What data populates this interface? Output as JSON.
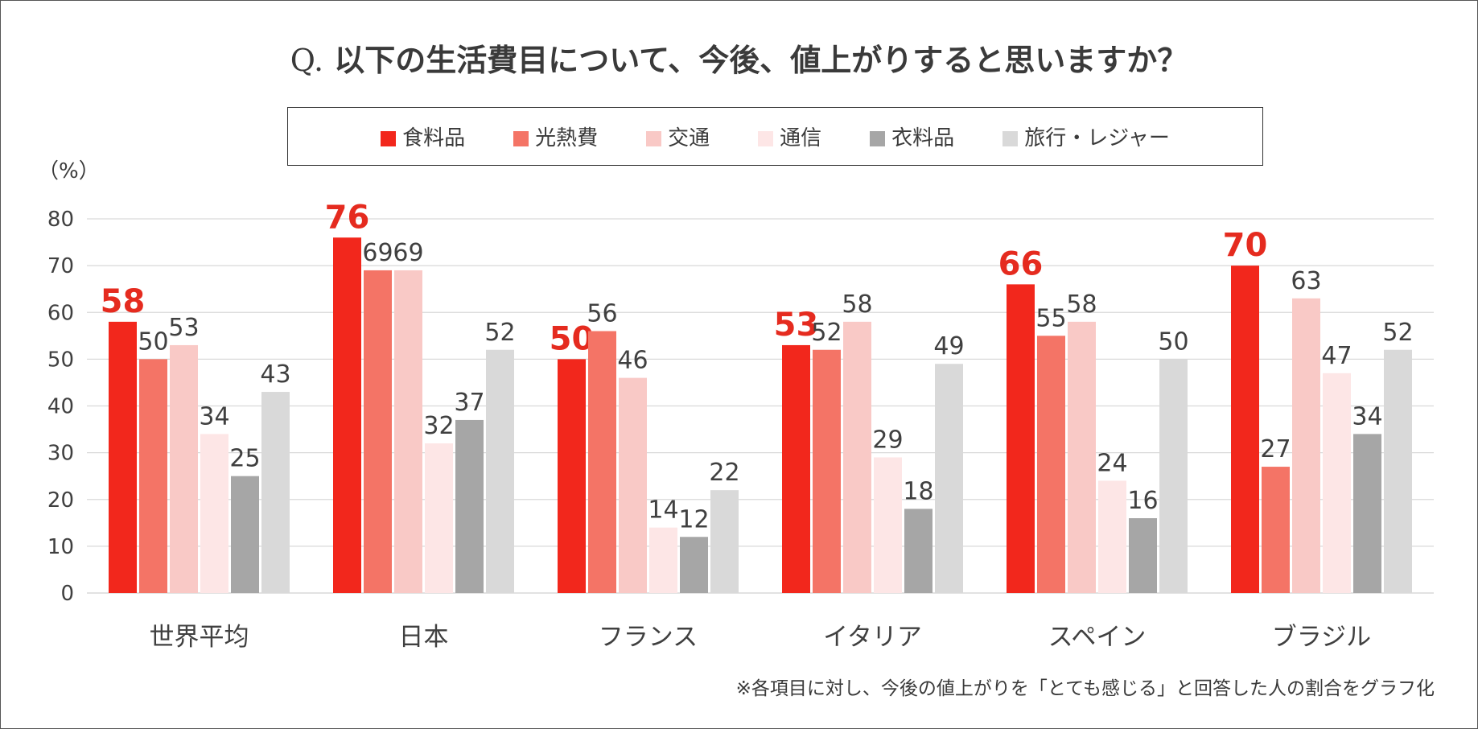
{
  "title": {
    "prefix": "Q.",
    "text": "以下の生活費目について、今後、値上がりすると思いますか？"
  },
  "unit_label": "（%）",
  "footnote": "※各項目に対し、今後の値上がりを「とても感じる」と回答した人の割合をグラフ化",
  "colors": {
    "food": "#f2271c",
    "utilities": "#f47466",
    "transport": "#f9c9c6",
    "telecom": "#fde6e6",
    "clothing": "#a6a6a6",
    "travel": "#d9d9d9",
    "highlight_label": "#e52b1f",
    "label": "#404040",
    "grid": "#d9d9d9"
  },
  "chart_data": {
    "type": "bar",
    "title": "Q. 以下の生活費目について、今後、値上がりすると思いますか？",
    "ylabel": "（%）",
    "xlabel": "",
    "ylim": [
      0,
      80
    ],
    "yticks": [
      0,
      10,
      20,
      30,
      40,
      50,
      60,
      70,
      80
    ],
    "grid": true,
    "legend_position": "top",
    "categories": [
      "世界平均",
      "日本",
      "フランス",
      "イタリア",
      "スペイン",
      "ブラジル"
    ],
    "series": [
      {
        "name": "食料品",
        "values": [
          58,
          76,
          50,
          53,
          66,
          70
        ],
        "color": "#f2271c",
        "highlight": true
      },
      {
        "name": "光熱費",
        "values": [
          50,
          69,
          56,
          52,
          55,
          27
        ],
        "color": "#f47466"
      },
      {
        "name": "交通",
        "values": [
          53,
          69,
          46,
          58,
          58,
          63
        ],
        "color": "#f9c9c6"
      },
      {
        "name": "通信",
        "values": [
          34,
          32,
          14,
          29,
          24,
          47
        ],
        "color": "#fde6e6"
      },
      {
        "name": "衣料品",
        "values": [
          25,
          37,
          12,
          18,
          16,
          34
        ],
        "color": "#a6a6a6"
      },
      {
        "name": "旅行・レジャー",
        "values": [
          43,
          52,
          22,
          49,
          50,
          52
        ],
        "color": "#d9d9d9"
      }
    ]
  }
}
